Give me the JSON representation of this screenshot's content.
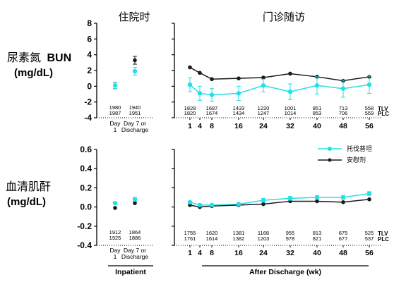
{
  "headers": {
    "inpatient": "住院时",
    "visits": "门诊随访"
  },
  "bun_label": {
    "cn": "尿素氮",
    "en": "BUN",
    "unit": "(mg/dL)"
  },
  "cr_label": {
    "cn": "血清肌酐",
    "unit": "(mg/dL)"
  },
  "legend": {
    "tolvaptan": "托伐普坦",
    "placebo": "安慰剂"
  },
  "row_codes": {
    "tlv": "TLV",
    "plc": "PLC"
  },
  "group_labels": {
    "inpatient": "Inpatient",
    "after": "After Discharge (wk)"
  },
  "colors": {
    "tolvaptan": "#22e0e6",
    "placebo": "#1a1a1a",
    "axis": "#000000"
  },
  "chart_data": [
    {
      "type": "line",
      "panel": "BUN inpatient",
      "categories": [
        [
          "Day",
          "1"
        ],
        [
          "Day 7 or",
          "Discharge"
        ]
      ],
      "ylim": [
        -4,
        8
      ],
      "yticks": [
        "-4",
        "-2",
        "0",
        "2",
        "4",
        "6",
        "8"
      ],
      "series": [
        {
          "name": "托伐普坦",
          "values": [
            0.1,
            1.9
          ],
          "err": [
            0.4,
            0.5
          ]
        },
        {
          "name": "安慰剂",
          "values": [
            0.1,
            3.3
          ],
          "err": [
            0.4,
            0.5
          ]
        }
      ],
      "n_tlv": [
        "1980",
        "1940"
      ],
      "n_plc": [
        "1987",
        "1951"
      ]
    },
    {
      "type": "line",
      "panel": "BUN after discharge",
      "xticks": [
        "1",
        "4",
        "8",
        "16",
        "24",
        "32",
        "40",
        "48",
        "56"
      ],
      "ylim": [
        -4,
        8
      ],
      "series": [
        {
          "name": "托伐普坦",
          "values": [
            0.2,
            -0.9,
            -1.1,
            -0.9,
            0.1,
            -0.7,
            0.1,
            -0.3,
            0.2
          ],
          "err": [
            0.9,
            0.9,
            0.8,
            0.9,
            0.8,
            1.0,
            1.1,
            1.1,
            1.1
          ]
        },
        {
          "name": "安慰剂",
          "values": [
            2.4,
            1.7,
            0.9,
            1.0,
            1.1,
            1.6,
            1.2,
            0.7,
            1.2
          ],
          "err": []
        }
      ],
      "n_tlv": [
        "1828",
        "",
        "1687",
        "1433",
        "1220",
        "1001",
        "851",
        "713",
        "558"
      ],
      "n_plc": [
        "1820",
        "",
        "1674",
        "1434",
        "1247",
        "1014",
        "853",
        "706",
        "559"
      ]
    },
    {
      "type": "line",
      "panel": "Serum creatinine inpatient",
      "categories": [
        [
          "Day",
          "1"
        ],
        [
          "Day 7 or",
          "Discharge"
        ]
      ],
      "ylim": [
        -0.4,
        0.6
      ],
      "yticks": [
        "-0.4",
        "-0.2",
        "0.0",
        "0.2",
        "0.4",
        "0.6"
      ],
      "series": [
        {
          "name": "托伐普坦",
          "values": [
            0.04,
            0.08
          ],
          "err": [
            0.01,
            0.02
          ]
        },
        {
          "name": "安慰剂",
          "values": [
            -0.01,
            0.04
          ],
          "err": []
        }
      ],
      "n_tlv": [
        "1912",
        "1864"
      ],
      "n_plc": [
        "1925",
        "1886"
      ]
    },
    {
      "type": "line",
      "panel": "Serum creatinine after discharge",
      "xticks": [
        "1",
        "4",
        "8",
        "16",
        "24",
        "32",
        "40",
        "48",
        "56"
      ],
      "ylim": [
        -0.4,
        0.6
      ],
      "series": [
        {
          "name": "托伐普坦",
          "values": [
            0.05,
            0.02,
            0.02,
            0.03,
            0.07,
            0.09,
            0.1,
            0.1,
            0.14
          ],
          "err": [
            0.01,
            0.01,
            0.01,
            0.01,
            0.02,
            0.02,
            0.02,
            0.02,
            0.02
          ]
        },
        {
          "name": "安慰剂",
          "values": [
            0.02,
            0.0,
            0.01,
            0.02,
            0.03,
            0.06,
            0.06,
            0.05,
            0.08
          ],
          "err": []
        }
      ],
      "n_tlv": [
        "1755",
        "",
        "1620",
        "1381",
        "1168",
        "955",
        "813",
        "675",
        "525"
      ],
      "n_plc": [
        "1761",
        "",
        "1614",
        "1382",
        "1203",
        "978",
        "821",
        "677",
        "537"
      ]
    }
  ]
}
